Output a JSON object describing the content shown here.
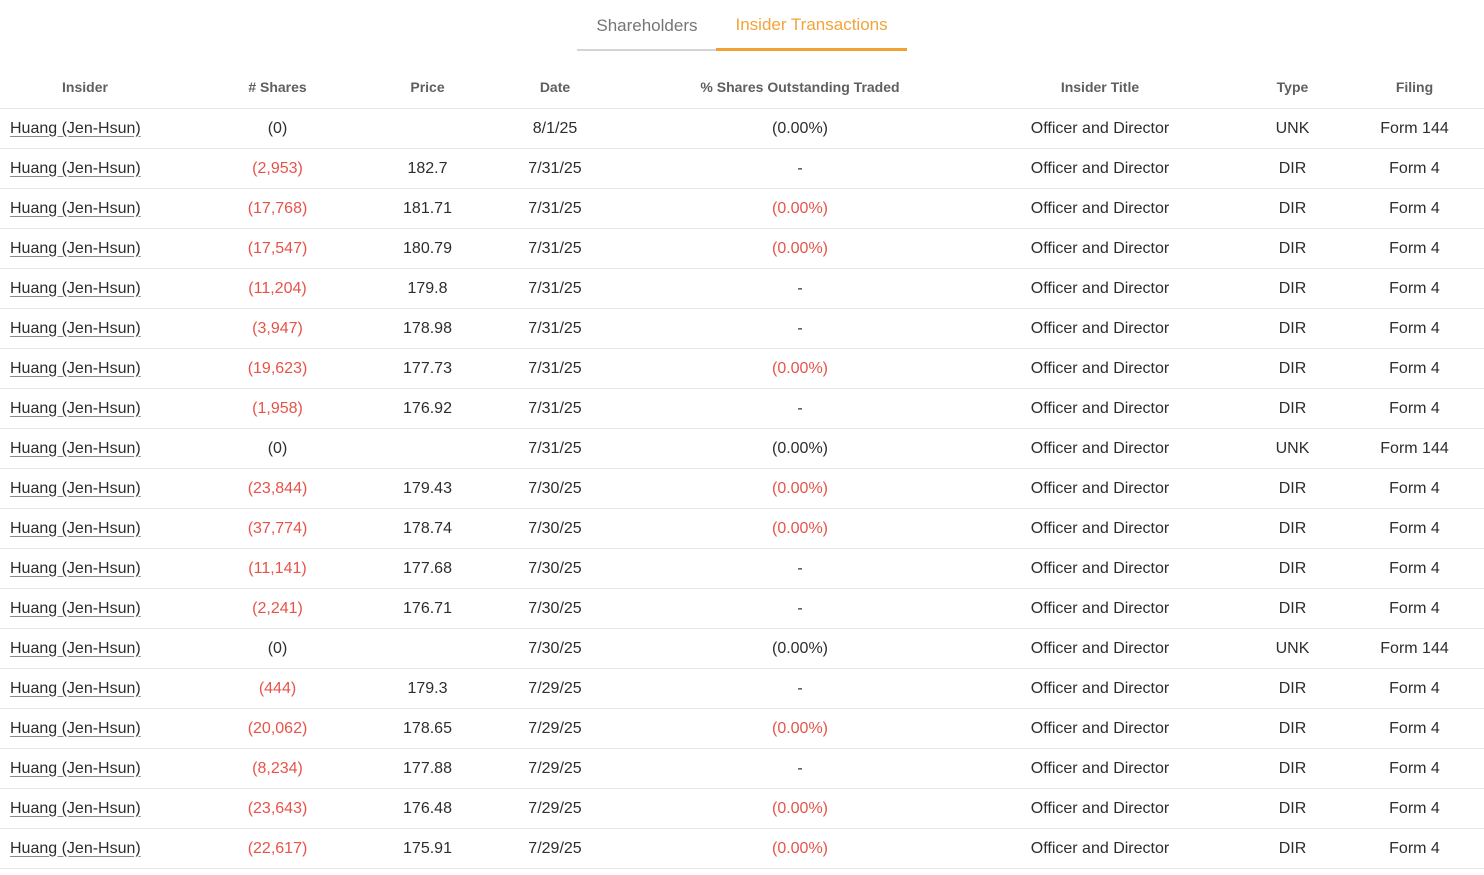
{
  "tabs": [
    {
      "label": "Shareholders",
      "active": false
    },
    {
      "label": "Insider Transactions",
      "active": true
    }
  ],
  "colors": {
    "accent_orange": "#f2a33a",
    "negative_red": "#e85349"
  },
  "table": {
    "columns": [
      "Insider",
      "# Shares",
      "Price",
      "Date",
      "% Shares Outstanding Traded",
      "Insider Title",
      "Type",
      "Filing"
    ],
    "rows": [
      {
        "insider": "Huang (Jen-Hsun)",
        "shares": "(0)",
        "shares_red": false,
        "price": "",
        "date": "8/1/25",
        "pct": "(0.00%)",
        "pct_red": false,
        "title": "Officer and Director",
        "type": "UNK",
        "filing": "Form 144"
      },
      {
        "insider": "Huang (Jen-Hsun)",
        "shares": "(2,953)",
        "shares_red": true,
        "price": "182.7",
        "date": "7/31/25",
        "pct": "-",
        "pct_red": false,
        "title": "Officer and Director",
        "type": "DIR",
        "filing": "Form 4"
      },
      {
        "insider": "Huang (Jen-Hsun)",
        "shares": "(17,768)",
        "shares_red": true,
        "price": "181.71",
        "date": "7/31/25",
        "pct": "(0.00%)",
        "pct_red": true,
        "title": "Officer and Director",
        "type": "DIR",
        "filing": "Form 4"
      },
      {
        "insider": "Huang (Jen-Hsun)",
        "shares": "(17,547)",
        "shares_red": true,
        "price": "180.79",
        "date": "7/31/25",
        "pct": "(0.00%)",
        "pct_red": true,
        "title": "Officer and Director",
        "type": "DIR",
        "filing": "Form 4"
      },
      {
        "insider": "Huang (Jen-Hsun)",
        "shares": "(11,204)",
        "shares_red": true,
        "price": "179.8",
        "date": "7/31/25",
        "pct": "-",
        "pct_red": false,
        "title": "Officer and Director",
        "type": "DIR",
        "filing": "Form 4"
      },
      {
        "insider": "Huang (Jen-Hsun)",
        "shares": "(3,947)",
        "shares_red": true,
        "price": "178.98",
        "date": "7/31/25",
        "pct": "-",
        "pct_red": false,
        "title": "Officer and Director",
        "type": "DIR",
        "filing": "Form 4"
      },
      {
        "insider": "Huang (Jen-Hsun)",
        "shares": "(19,623)",
        "shares_red": true,
        "price": "177.73",
        "date": "7/31/25",
        "pct": "(0.00%)",
        "pct_red": true,
        "title": "Officer and Director",
        "type": "DIR",
        "filing": "Form 4"
      },
      {
        "insider": "Huang (Jen-Hsun)",
        "shares": "(1,958)",
        "shares_red": true,
        "price": "176.92",
        "date": "7/31/25",
        "pct": "-",
        "pct_red": false,
        "title": "Officer and Director",
        "type": "DIR",
        "filing": "Form 4"
      },
      {
        "insider": "Huang (Jen-Hsun)",
        "shares": "(0)",
        "shares_red": false,
        "price": "",
        "date": "7/31/25",
        "pct": "(0.00%)",
        "pct_red": false,
        "title": "Officer and Director",
        "type": "UNK",
        "filing": "Form 144"
      },
      {
        "insider": "Huang (Jen-Hsun)",
        "shares": "(23,844)",
        "shares_red": true,
        "price": "179.43",
        "date": "7/30/25",
        "pct": "(0.00%)",
        "pct_red": true,
        "title": "Officer and Director",
        "type": "DIR",
        "filing": "Form 4"
      },
      {
        "insider": "Huang (Jen-Hsun)",
        "shares": "(37,774)",
        "shares_red": true,
        "price": "178.74",
        "date": "7/30/25",
        "pct": "(0.00%)",
        "pct_red": true,
        "title": "Officer and Director",
        "type": "DIR",
        "filing": "Form 4"
      },
      {
        "insider": "Huang (Jen-Hsun)",
        "shares": "(11,141)",
        "shares_red": true,
        "price": "177.68",
        "date": "7/30/25",
        "pct": "-",
        "pct_red": false,
        "title": "Officer and Director",
        "type": "DIR",
        "filing": "Form 4"
      },
      {
        "insider": "Huang (Jen-Hsun)",
        "shares": "(2,241)",
        "shares_red": true,
        "price": "176.71",
        "date": "7/30/25",
        "pct": "-",
        "pct_red": false,
        "title": "Officer and Director",
        "type": "DIR",
        "filing": "Form 4"
      },
      {
        "insider": "Huang (Jen-Hsun)",
        "shares": "(0)",
        "shares_red": false,
        "price": "",
        "date": "7/30/25",
        "pct": "(0.00%)",
        "pct_red": false,
        "title": "Officer and Director",
        "type": "UNK",
        "filing": "Form 144"
      },
      {
        "insider": "Huang (Jen-Hsun)",
        "shares": "(444)",
        "shares_red": true,
        "price": "179.3",
        "date": "7/29/25",
        "pct": "-",
        "pct_red": false,
        "title": "Officer and Director",
        "type": "DIR",
        "filing": "Form 4"
      },
      {
        "insider": "Huang (Jen-Hsun)",
        "shares": "(20,062)",
        "shares_red": true,
        "price": "178.65",
        "date": "7/29/25",
        "pct": "(0.00%)",
        "pct_red": true,
        "title": "Officer and Director",
        "type": "DIR",
        "filing": "Form 4"
      },
      {
        "insider": "Huang (Jen-Hsun)",
        "shares": "(8,234)",
        "shares_red": true,
        "price": "177.88",
        "date": "7/29/25",
        "pct": "-",
        "pct_red": false,
        "title": "Officer and Director",
        "type": "DIR",
        "filing": "Form 4"
      },
      {
        "insider": "Huang (Jen-Hsun)",
        "shares": "(23,643)",
        "shares_red": true,
        "price": "176.48",
        "date": "7/29/25",
        "pct": "(0.00%)",
        "pct_red": true,
        "title": "Officer and Director",
        "type": "DIR",
        "filing": "Form 4"
      },
      {
        "insider": "Huang (Jen-Hsun)",
        "shares": "(22,617)",
        "shares_red": true,
        "price": "175.91",
        "date": "7/29/25",
        "pct": "(0.00%)",
        "pct_red": true,
        "title": "Officer and Director",
        "type": "DIR",
        "filing": "Form 4"
      }
    ]
  }
}
